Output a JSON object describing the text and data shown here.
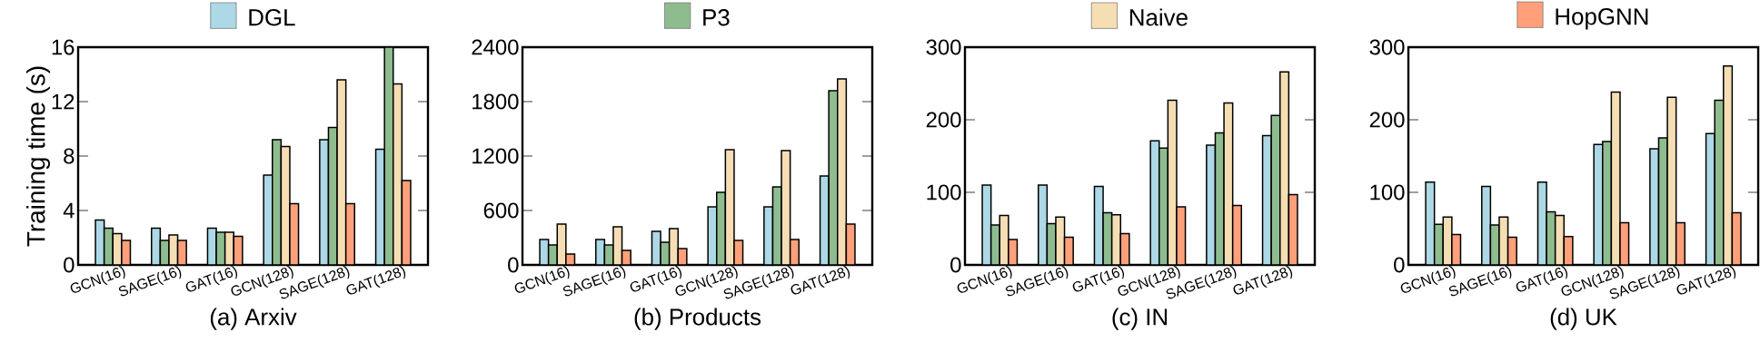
{
  "chart_data": [
    {
      "type": "bar",
      "title": "(a) Arxiv",
      "ylabel": "Training time (s)",
      "legend": "top",
      "categories": [
        "GCN(16)",
        "SAGE(16)",
        "GAT(16)",
        "GCN(128)",
        "SAGE(128)",
        "GAT(128)"
      ],
      "ylim": [
        0,
        16
      ],
      "yticks": [
        0,
        4,
        8,
        12,
        16
      ],
      "series": [
        {
          "name": "DGL",
          "color": "#add8e6",
          "values": [
            3.3,
            2.7,
            2.7,
            6.6,
            9.2,
            8.5
          ]
        },
        {
          "color": "#8fbc8f",
          "values": [
            2.7,
            1.8,
            2.4,
            9.2,
            10.1,
            16.0
          ]
        },
        {
          "color": "#f5deb3",
          "values": [
            2.3,
            2.2,
            2.4,
            8.7,
            13.6,
            13.3
          ]
        },
        {
          "color": "#ffa07a",
          "values": [
            1.8,
            1.8,
            2.1,
            4.5,
            4.5,
            6.2
          ]
        }
      ]
    },
    {
      "type": "bar",
      "title": "(b) Products",
      "legend": "top",
      "categories": [
        "GCN(16)",
        "SAGE(16)",
        "GAT(16)",
        "GCN(128)",
        "SAGE(128)",
        "GAT(128)"
      ],
      "ylim": [
        0,
        2400
      ],
      "yticks": [
        0,
        600,
        1200,
        1800,
        2400
      ],
      "series": [
        {
          "color": "#add8e6",
          "values": [
            280,
            280,
            370,
            640,
            640,
            980
          ]
        },
        {
          "name": "P3",
          "color": "#8fbc8f",
          "values": [
            220,
            220,
            250,
            800,
            860,
            1920
          ]
        },
        {
          "color": "#f5deb3",
          "values": [
            450,
            420,
            400,
            1270,
            1260,
            2050
          ]
        },
        {
          "color": "#ffa07a",
          "values": [
            120,
            160,
            180,
            270,
            280,
            450
          ]
        }
      ]
    },
    {
      "type": "bar",
      "title": "(c) IN",
      "legend": "top",
      "categories": [
        "GCN(16)",
        "SAGE(16)",
        "GAT(16)",
        "GCN(128)",
        "SAGE(128)",
        "GAT(128)"
      ],
      "ylim": [
        0,
        300
      ],
      "yticks": [
        0,
        100,
        200,
        300
      ],
      "series": [
        {
          "color": "#add8e6",
          "values": [
            110,
            110,
            108,
            171,
            165,
            178
          ]
        },
        {
          "color": "#8fbc8f",
          "values": [
            55,
            57,
            72,
            161,
            182,
            206
          ]
        },
        {
          "name": "Naive",
          "color": "#f5deb3",
          "values": [
            68,
            66,
            69,
            227,
            223,
            266
          ]
        },
        {
          "color": "#ffa07a",
          "values": [
            35,
            38,
            43,
            80,
            82,
            97
          ]
        }
      ]
    },
    {
      "type": "bar",
      "title": "(d) UK",
      "legend": "top",
      "categories": [
        "GCN(16)",
        "SAGE(16)",
        "GAT(16)",
        "GCN(128)",
        "SAGE(128)",
        "GAT(128)"
      ],
      "ylim": [
        0,
        300
      ],
      "yticks": [
        0,
        100,
        200,
        300
      ],
      "series": [
        {
          "color": "#add8e6",
          "values": [
            114,
            108,
            114,
            166,
            160,
            181
          ]
        },
        {
          "color": "#8fbc8f",
          "values": [
            56,
            55,
            73,
            170,
            175,
            227
          ]
        },
        {
          "color": "#f5deb3",
          "values": [
            66,
            66,
            68,
            238,
            231,
            274
          ]
        },
        {
          "name": "HopGNN",
          "color": "#ffa07a",
          "values": [
            42,
            38,
            39,
            58,
            58,
            72
          ]
        }
      ]
    }
  ]
}
